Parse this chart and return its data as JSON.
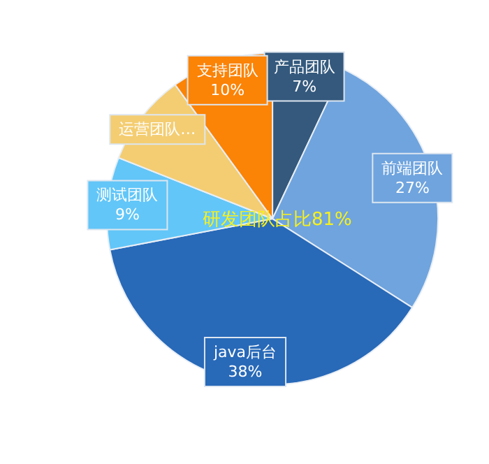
{
  "chart_data": {
    "type": "pie",
    "categories": [
      "产品团队",
      "前端团队",
      "java后台",
      "测试团队",
      "运营团队…",
      "支持团队"
    ],
    "values": [
      7,
      27,
      38,
      9,
      9,
      10
    ],
    "colors": [
      "#34597d",
      "#6fa4de",
      "#2869b8",
      "#62c6f8",
      "#f4cd72",
      "#fb8306"
    ],
    "value_labels": [
      "7%",
      "27%",
      "38%",
      "9%",
      null,
      "10%"
    ],
    "annotations": [
      "研发团队占比81%"
    ],
    "legend": false
  }
}
